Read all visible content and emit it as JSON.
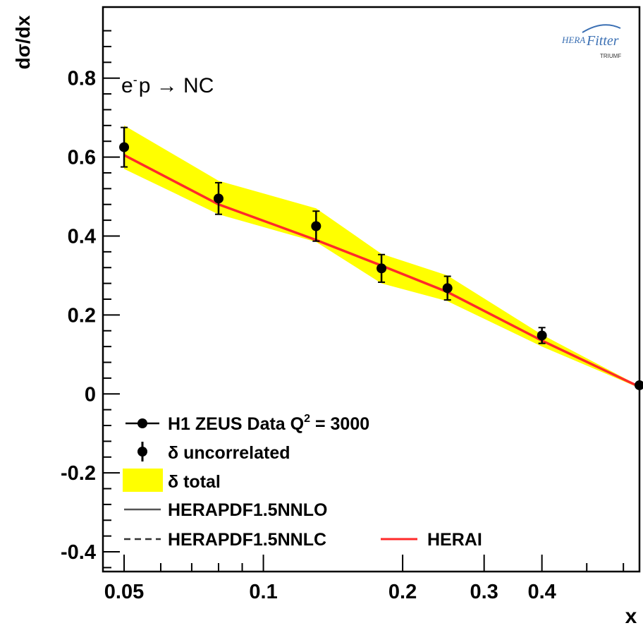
{
  "chart_data": {
    "type": "line",
    "title": "",
    "xlabel": "x",
    "ylabel": "dσ/dx",
    "xscale": "log",
    "xlim": [
      0.045,
      0.65
    ],
    "ylim": [
      -0.45,
      0.98
    ],
    "x_ticks": [
      0.05,
      0.1,
      0.2,
      0.3,
      0.4
    ],
    "x_tick_labels": [
      "0.05",
      "0.1",
      "0.2",
      "0.3",
      "0.4"
    ],
    "y_ticks": [
      -0.4,
      -0.2,
      0,
      0.2,
      0.4,
      0.6,
      0.8
    ],
    "y_tick_labels": [
      "-0.4",
      "-0.2",
      "0",
      "0.2",
      "0.4",
      "0.6",
      "0.8"
    ],
    "annotation": {
      "prefix": "e",
      "superscript": "-",
      "rest": "p → NC"
    },
    "series": [
      {
        "name": "H1 ZEUS Data Q² = 3000",
        "style": "points",
        "color": "#000000",
        "x": [
          0.05,
          0.08,
          0.13,
          0.18,
          0.25,
          0.4,
          0.65
        ],
        "y": [
          0.625,
          0.495,
          0.425,
          0.318,
          0.268,
          0.148,
          0.022
        ],
        "err_uncorrelated": [
          0.05,
          0.04,
          0.038,
          0.035,
          0.03,
          0.02,
          0.006
        ]
      },
      {
        "name": "HERAI",
        "style": "line",
        "color": "#ff2a2a",
        "x": [
          0.05,
          0.08,
          0.13,
          0.18,
          0.25,
          0.4,
          0.65
        ],
        "y": [
          0.605,
          0.48,
          0.39,
          0.325,
          0.258,
          0.135,
          0.018
        ],
        "band_lower": [
          0.57,
          0.455,
          0.385,
          0.28,
          0.235,
          0.12,
          0.015
        ],
        "band_upper": [
          0.68,
          0.54,
          0.47,
          0.355,
          0.3,
          0.15,
          0.02
        ],
        "band_color": "#ffff00"
      }
    ],
    "legend": {
      "placement": "bottom-left",
      "entries": [
        {
          "label_main": "H1 ZEUS Data Q",
          "label_sup": "2",
          "label_end": " = 3000",
          "kind": "marker-line"
        },
        {
          "label_main": "δ uncorrelated",
          "kind": "marker-errorbar"
        },
        {
          "label_main": "δ total",
          "kind": "band"
        },
        {
          "label_main": "HERAPDF1.5NNLO",
          "kind": "line-solid"
        },
        {
          "label_main": "HERAPDF1.5NNLC",
          "kind": "line-dashed"
        },
        {
          "label_main": "HERAI",
          "kind": "line-red"
        }
      ]
    },
    "logo": {
      "word1": "HERA",
      "word2": "Fitter",
      "word3": "TRIUMF"
    }
  }
}
